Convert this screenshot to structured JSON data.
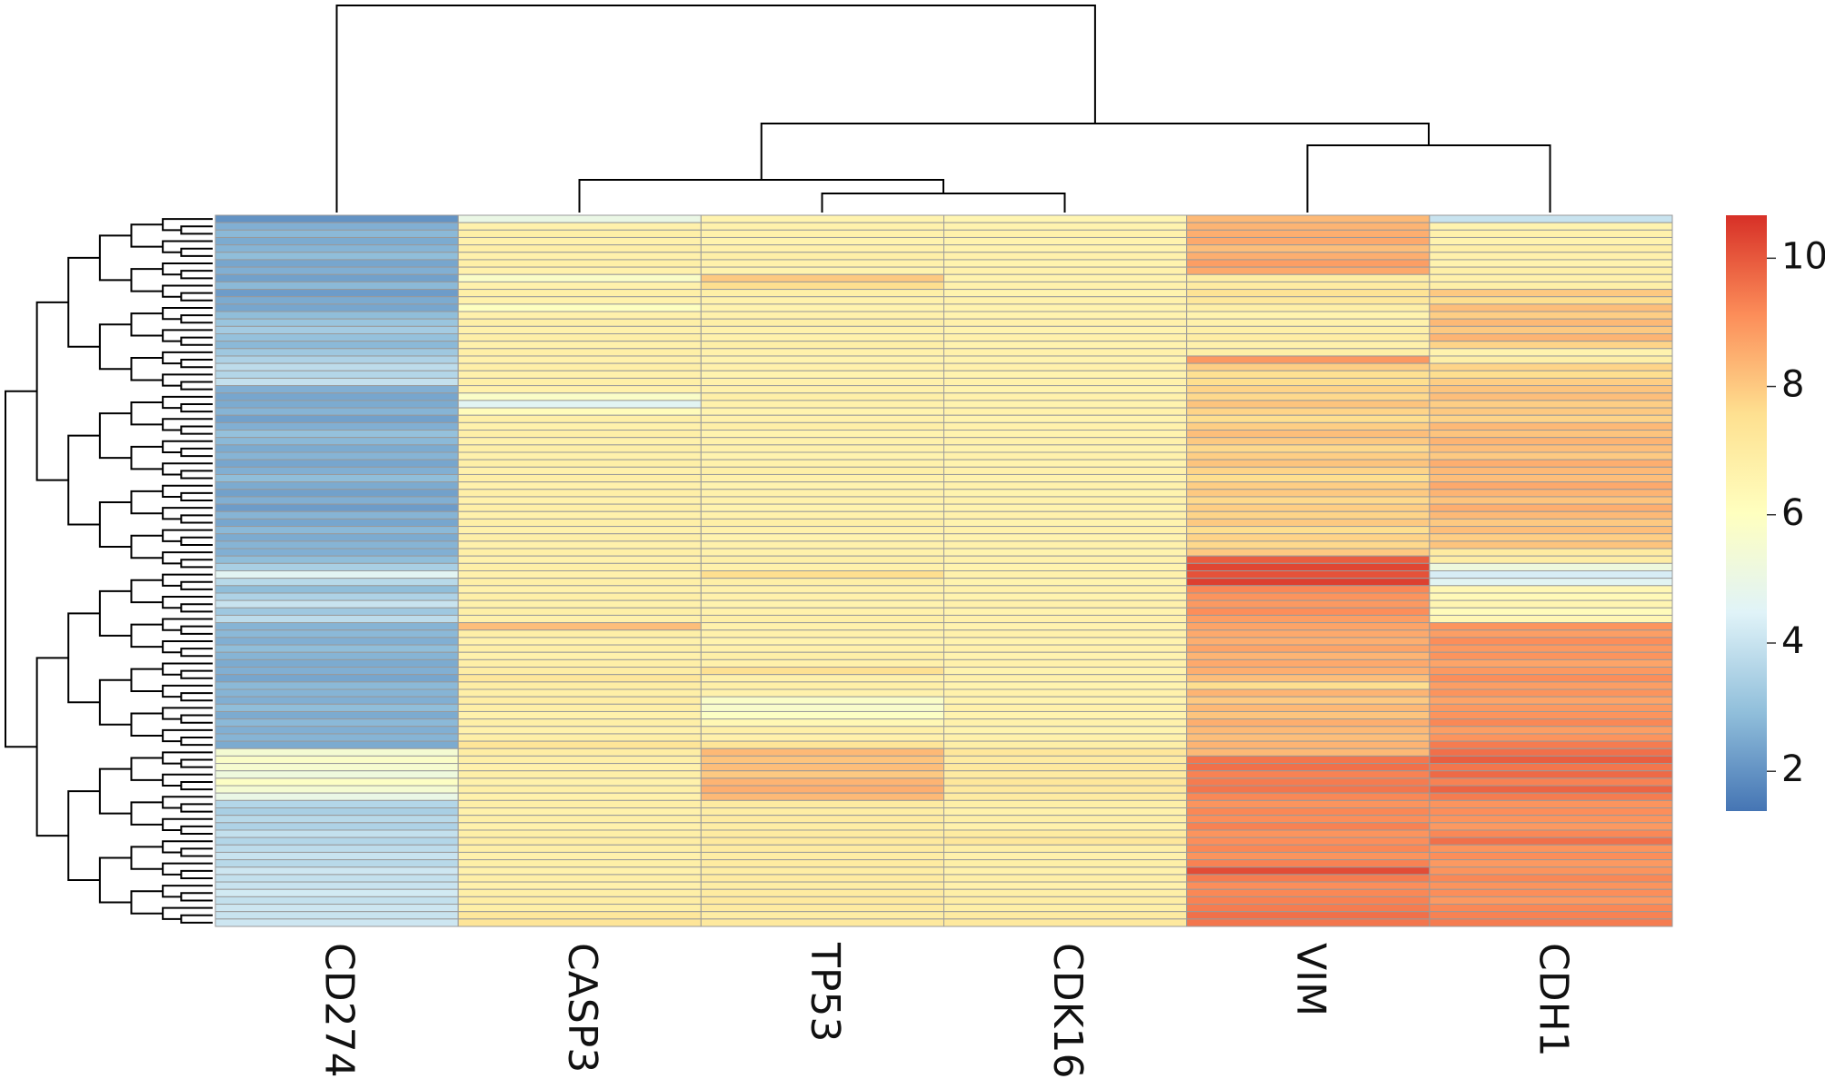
{
  "chart_data": {
    "type": "heatmap",
    "categories": [
      "CD274",
      "CASP3",
      "TP53",
      "CDK16",
      "VIM",
      "CDH1"
    ],
    "values": [
      [
        2.0,
        5.0,
        6.6,
        6.5,
        8.3,
        4.0
      ],
      [
        2.6,
        6.7,
        6.7,
        6.6,
        8.4,
        6.6
      ],
      [
        2.8,
        6.8,
        6.7,
        6.7,
        8.5,
        6.7
      ],
      [
        2.5,
        6.7,
        6.6,
        6.6,
        8.6,
        6.6
      ],
      [
        2.7,
        6.8,
        6.7,
        6.6,
        8.2,
        6.8
      ],
      [
        2.9,
        6.7,
        6.8,
        6.7,
        8.5,
        6.7
      ],
      [
        2.4,
        6.8,
        6.7,
        6.6,
        8.8,
        6.6
      ],
      [
        2.6,
        6.7,
        6.6,
        6.7,
        8.6,
        6.8
      ],
      [
        2.3,
        5.8,
        8.0,
        6.6,
        6.9,
        6.7
      ],
      [
        2.8,
        6.7,
        7.6,
        6.7,
        7.0,
        6.8
      ],
      [
        2.2,
        6.8,
        6.8,
        6.6,
        7.4,
        8.0
      ],
      [
        2.5,
        6.7,
        6.7,
        6.7,
        7.2,
        7.6
      ],
      [
        2.4,
        6.0,
        6.6,
        6.6,
        6.8,
        8.2
      ],
      [
        2.9,
        6.7,
        6.7,
        6.6,
        6.6,
        7.9
      ],
      [
        3.1,
        6.8,
        6.8,
        6.7,
        6.7,
        8.3
      ],
      [
        3.3,
        6.7,
        6.7,
        6.6,
        6.8,
        8.0
      ],
      [
        3.0,
        6.8,
        6.7,
        6.7,
        6.9,
        8.4
      ],
      [
        2.8,
        6.7,
        6.8,
        6.6,
        6.7,
        7.8
      ],
      [
        3.2,
        6.8,
        6.7,
        6.7,
        6.8,
        6.6
      ],
      [
        3.5,
        6.7,
        6.6,
        6.6,
        8.9,
        6.8
      ],
      [
        3.8,
        6.8,
        6.7,
        6.7,
        7.9,
        7.8
      ],
      [
        3.6,
        6.7,
        6.6,
        6.6,
        7.5,
        7.6
      ],
      [
        3.9,
        6.8,
        6.7,
        6.7,
        7.6,
        7.9
      ],
      [
        2.6,
        6.7,
        6.7,
        6.6,
        7.8,
        8.1
      ],
      [
        2.4,
        5.8,
        6.8,
        6.7,
        7.7,
        8.2
      ],
      [
        2.5,
        4.6,
        6.7,
        6.6,
        8.1,
        7.9
      ],
      [
        2.7,
        6.2,
        6.6,
        6.7,
        7.8,
        8.0
      ],
      [
        2.3,
        6.8,
        6.7,
        6.6,
        7.6,
        7.8
      ],
      [
        2.6,
        6.7,
        6.8,
        6.7,
        7.9,
        8.3
      ],
      [
        3.0,
        6.8,
        6.6,
        6.6,
        8.2,
        8.1
      ],
      [
        2.8,
        6.7,
        6.7,
        6.7,
        8.0,
        8.4
      ],
      [
        2.5,
        6.8,
        6.7,
        6.6,
        7.7,
        8.2
      ],
      [
        2.7,
        6.7,
        6.6,
        6.7,
        7.9,
        8.0
      ],
      [
        2.4,
        6.8,
        6.7,
        6.6,
        8.1,
        8.5
      ],
      [
        2.6,
        6.7,
        6.8,
        6.7,
        7.8,
        8.3
      ],
      [
        2.9,
        6.8,
        6.7,
        6.6,
        7.6,
        8.2
      ],
      [
        2.5,
        6.7,
        6.6,
        6.7,
        7.9,
        8.6
      ],
      [
        2.3,
        6.8,
        6.7,
        6.6,
        8.0,
        8.4
      ],
      [
        2.6,
        6.7,
        6.7,
        6.7,
        7.7,
        8.1
      ],
      [
        2.2,
        6.8,
        6.6,
        6.6,
        7.9,
        8.5
      ],
      [
        2.7,
        6.7,
        6.7,
        6.7,
        7.8,
        8.3
      ],
      [
        2.4,
        6.8,
        6.8,
        6.6,
        8.0,
        8.0
      ],
      [
        2.8,
        6.7,
        6.7,
        6.7,
        7.6,
        8.2
      ],
      [
        2.5,
        6.8,
        6.6,
        6.6,
        7.8,
        7.9
      ],
      [
        2.7,
        6.7,
        6.7,
        6.7,
        7.7,
        8.1
      ],
      [
        2.6,
        6.8,
        6.7,
        6.6,
        8.0,
        7.0
      ],
      [
        2.9,
        6.7,
        6.8,
        6.7,
        9.9,
        6.9
      ],
      [
        3.4,
        6.8,
        6.7,
        6.6,
        10.3,
        5.2
      ],
      [
        4.6,
        6.7,
        7.6,
        6.7,
        10.1,
        4.3
      ],
      [
        3.7,
        6.8,
        6.8,
        6.6,
        10.4,
        4.6
      ],
      [
        2.9,
        6.7,
        6.7,
        6.7,
        9.2,
        6.4
      ],
      [
        3.5,
        6.8,
        6.7,
        6.6,
        9.0,
        6.3
      ],
      [
        4.0,
        6.7,
        6.6,
        6.7,
        8.9,
        6.5
      ],
      [
        3.2,
        6.8,
        6.7,
        6.6,
        9.1,
        6.2
      ],
      [
        3.8,
        6.7,
        6.8,
        6.7,
        8.8,
        6.4
      ],
      [
        2.7,
        8.2,
        6.7,
        6.6,
        8.7,
        9.0
      ],
      [
        2.8,
        6.8,
        6.7,
        6.7,
        8.6,
        8.8
      ],
      [
        2.6,
        6.7,
        6.6,
        6.6,
        8.5,
        9.1
      ],
      [
        2.9,
        6.8,
        6.7,
        6.7,
        8.7,
        8.9
      ],
      [
        2.7,
        6.7,
        6.8,
        6.6,
        8.4,
        9.0
      ],
      [
        2.5,
        6.8,
        6.7,
        6.7,
        8.6,
        8.7
      ],
      [
        2.6,
        6.9,
        7.5,
        6.6,
        8.5,
        8.9
      ],
      [
        2.4,
        7.2,
        6.7,
        6.7,
        8.2,
        9.1
      ],
      [
        2.8,
        6.9,
        6.8,
        6.6,
        7.6,
        8.8
      ],
      [
        2.7,
        6.8,
        6.7,
        6.7,
        8.4,
        9.0
      ],
      [
        2.6,
        6.9,
        5.8,
        6.6,
        8.0,
        8.7
      ],
      [
        2.9,
        6.8,
        5.7,
        6.7,
        8.3,
        8.9
      ],
      [
        2.5,
        6.7,
        5.9,
        6.6,
        8.1,
        9.0
      ],
      [
        2.8,
        6.8,
        6.4,
        6.7,
        8.5,
        9.2
      ],
      [
        2.6,
        6.7,
        6.8,
        6.6,
        8.3,
        8.8
      ],
      [
        2.7,
        6.8,
        6.7,
        6.7,
        8.2,
        9.0
      ],
      [
        2.5,
        7.3,
        7.3,
        6.8,
        8.4,
        9.4
      ],
      [
        5.5,
        6.9,
        8.3,
        7.2,
        8.3,
        9.6
      ],
      [
        5.8,
        6.8,
        8.1,
        7.0,
        9.5,
        9.9
      ],
      [
        5.6,
        6.7,
        8.2,
        7.1,
        9.6,
        9.5
      ],
      [
        5.2,
        6.8,
        8.0,
        7.0,
        9.3,
        9.7
      ],
      [
        5.9,
        6.7,
        8.4,
        7.2,
        9.4,
        9.3
      ],
      [
        5.5,
        6.8,
        8.5,
        7.1,
        9.5,
        9.8
      ],
      [
        5.0,
        6.7,
        8.3,
        7.0,
        9.2,
        9.4
      ],
      [
        3.6,
        6.8,
        7.0,
        6.8,
        9.0,
        9.0
      ],
      [
        3.4,
        6.7,
        6.9,
        6.7,
        9.2,
        9.1
      ],
      [
        3.7,
        6.8,
        7.0,
        6.8,
        9.1,
        9.0
      ],
      [
        3.5,
        6.7,
        6.9,
        6.7,
        9.3,
        8.9
      ],
      [
        3.9,
        6.8,
        7.0,
        7.0,
        9.0,
        9.2
      ],
      [
        3.6,
        6.9,
        7.1,
        7.2,
        9.1,
        9.6
      ],
      [
        3.8,
        6.8,
        7.0,
        6.8,
        9.2,
        9.0
      ],
      [
        4.0,
        6.7,
        6.9,
        6.7,
        9.0,
        9.1
      ],
      [
        3.7,
        6.8,
        7.0,
        6.8,
        9.3,
        8.9
      ],
      [
        4.1,
        6.7,
        6.9,
        6.7,
        10.2,
        9.0
      ],
      [
        3.9,
        6.8,
        7.0,
        6.8,
        9.4,
        9.2
      ],
      [
        4.0,
        6.7,
        6.9,
        6.7,
        9.1,
        9.0
      ],
      [
        4.2,
        6.8,
        7.0,
        6.8,
        9.2,
        9.1
      ],
      [
        3.9,
        6.9,
        7.1,
        6.9,
        9.3,
        8.9
      ],
      [
        4.1,
        6.8,
        7.0,
        6.8,
        9.4,
        9.2
      ],
      [
        4.0,
        7.2,
        6.9,
        7.0,
        9.6,
        9.3
      ],
      [
        4.1,
        7.3,
        7.1,
        7.1,
        9.5,
        9.4
      ]
    ],
    "colors": [
      "#4575b4",
      "#91bfdb",
      "#e0f3f8",
      "#ffffbf",
      "#fee090",
      "#fc8d59",
      "#d73027"
    ],
    "colorlim": [
      1.38,
      10.67
    ],
    "colorticks": [
      2,
      4,
      6,
      8,
      10
    ],
    "cell_border": "#9a9a9a"
  }
}
